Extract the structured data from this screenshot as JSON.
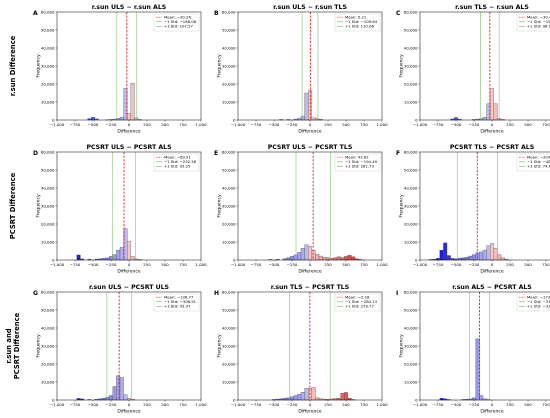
{
  "row_labels": [
    "r.sun Difference",
    "PCSRT Difference",
    "r.sun and",
    "PCSRT Difference"
  ],
  "colors": {
    "mean": "#e11d1d",
    "std": "#7cc46b",
    "positive": "#dc2626",
    "negative": "#1d1dd6",
    "edge": "#555555"
  },
  "chart_data": [
    {
      "type": "bar",
      "panel": "A",
      "title": "r.sun ULS − r.sun ALS",
      "xlabel": "Difference",
      "ylabel": "Frequency",
      "xlim": [
        -1000,
        1000
      ],
      "ylim": [
        0,
        60000
      ],
      "xticks": [
        "−1,000",
        "−750",
        "−500",
        "−250",
        "0",
        "250",
        "500",
        "750",
        "1,000"
      ],
      "yticks": [
        "0",
        "10,000",
        "20,000",
        "30,000",
        "40,000",
        "50,000",
        "60,000"
      ],
      "legend": [
        "Mean:   −30.26",
        "−1 Std:  −168.08",
        "+1 Std:   107.57"
      ],
      "mean": -30.26,
      "std_low": -168.08,
      "std_high": 107.57,
      "bins": [
        [
          -575,
          -525,
          800
        ],
        [
          -525,
          -475,
          1500
        ],
        [
          -475,
          -425,
          700
        ],
        [
          -325,
          -275,
          150
        ],
        [
          -275,
          -225,
          300
        ],
        [
          -225,
          -175,
          500
        ],
        [
          -175,
          -125,
          900
        ],
        [
          -125,
          -75,
          1600
        ],
        [
          -75,
          -25,
          17500
        ],
        [
          -25,
          25,
          3500
        ],
        [
          25,
          75,
          20500
        ],
        [
          75,
          125,
          1200
        ],
        [
          125,
          175,
          300
        ]
      ]
    },
    {
      "type": "bar",
      "panel": "B",
      "title": "r.sun ULS − r.sun TLS",
      "xlabel": "Difference",
      "ylabel": "Frequency",
      "xlim": [
        -1000,
        1000
      ],
      "ylim": [
        0,
        60000
      ],
      "xticks": [
        "−1,000",
        "−750",
        "−500",
        "−250",
        "0",
        "250",
        "500",
        "750",
        "1,000"
      ],
      "yticks": [
        "0",
        "10,000",
        "20,000",
        "30,000",
        "40,000",
        "50,000",
        "60,000"
      ],
      "legend": [
        "Mean:     5.21",
        "−1 Std:  −109.64",
        "+1 Std:   110.06"
      ],
      "mean": 5.21,
      "std_low": -109.64,
      "std_high": 110.06,
      "bins": [
        [
          -425,
          -375,
          300
        ],
        [
          -325,
          -275,
          300
        ],
        [
          -225,
          -175,
          500
        ],
        [
          -175,
          -125,
          900
        ],
        [
          -125,
          -75,
          2200
        ],
        [
          -75,
          -25,
          15000
        ],
        [
          -25,
          25,
          16500
        ],
        [
          25,
          75,
          1200
        ],
        [
          75,
          125,
          800
        ],
        [
          125,
          175,
          400
        ]
      ]
    },
    {
      "type": "bar",
      "panel": "C",
      "title": "r.sun TLS − r.sun ALS",
      "xlabel": "Difference",
      "ylabel": "Frequency",
      "xlim": [
        -1000,
        1000
      ],
      "ylim": [
        0,
        60000
      ],
      "xticks": [
        "−1,000",
        "−750",
        "−500",
        "−250",
        "0",
        "250",
        "500",
        "750",
        "1,000"
      ],
      "yticks": [
        "0",
        "10,000",
        "20,000",
        "30,000",
        "40,000",
        "50,000",
        "60,000"
      ],
      "legend": [
        "Mean:   −30.47",
        "−1 Std:  −159.84",
        "+1 Std:    98.90"
      ],
      "mean": -30.47,
      "std_low": -159.84,
      "std_high": 98.9,
      "bins": [
        [
          -575,
          -525,
          600
        ],
        [
          -525,
          -475,
          1400
        ],
        [
          -475,
          -425,
          500
        ],
        [
          -275,
          -225,
          300
        ],
        [
          -225,
          -175,
          500
        ],
        [
          -175,
          -125,
          800
        ],
        [
          -125,
          -75,
          1600
        ],
        [
          -75,
          -25,
          9000
        ],
        [
          -25,
          25,
          17500
        ],
        [
          25,
          75,
          9000
        ],
        [
          75,
          125,
          900
        ],
        [
          125,
          175,
          300
        ]
      ]
    },
    {
      "type": "bar",
      "panel": "D",
      "title": "PCSRT ULS − PCSRT ALS",
      "xlabel": "Difference",
      "ylabel": "Frequency",
      "xlim": [
        -1000,
        1000
      ],
      "ylim": [
        0,
        60000
      ],
      "xticks": [
        "−1,000",
        "−750",
        "−500",
        "−250",
        "0",
        "250",
        "500",
        "750",
        "1,000"
      ],
      "yticks": [
        "0",
        "10,000",
        "20,000",
        "30,000",
        "40,000",
        "50,000",
        "60,000"
      ],
      "legend": [
        "Mean:   −69.51",
        "−1 Std:  −232.26",
        "+1 Std:    93.25"
      ],
      "mean": -69.51,
      "std_low": -232.26,
      "std_high": 93.25,
      "bins": [
        [
          -725,
          -675,
          2800
        ],
        [
          -675,
          -625,
          600
        ],
        [
          -575,
          -525,
          400
        ],
        [
          -475,
          -425,
          500
        ],
        [
          -425,
          -375,
          700
        ],
        [
          -375,
          -325,
          900
        ],
        [
          -325,
          -275,
          1200
        ],
        [
          -275,
          -225,
          2000
        ],
        [
          -225,
          -175,
          3000
        ],
        [
          -175,
          -125,
          5500
        ],
        [
          -125,
          -75,
          7000
        ],
        [
          -75,
          -25,
          17500
        ],
        [
          -25,
          25,
          10500
        ],
        [
          25,
          75,
          2000
        ],
        [
          75,
          125,
          600
        ],
        [
          125,
          175,
          300
        ]
      ]
    },
    {
      "type": "bar",
      "panel": "E",
      "title": "PCSRT ULS − PCSRT TLS",
      "xlabel": "Difference",
      "ylabel": "Frequency",
      "xlim": [
        -1000,
        1000
      ],
      "ylim": [
        0,
        60000
      ],
      "xticks": [
        "−1,000",
        "−750",
        "−500",
        "−250",
        "0",
        "250",
        "500",
        "750",
        "1,000"
      ],
      "yticks": [
        "0",
        "10,000",
        "20,000",
        "30,000",
        "40,000",
        "50,000",
        "60,000"
      ],
      "legend": [
        "Mean:    43.62",
        "−1 Std:  −194.49",
        "+1 Std:   281.73"
      ],
      "mean": 43.62,
      "std_low": -194.49,
      "std_high": 281.73,
      "bins": [
        [
          -575,
          -525,
          300
        ],
        [
          -475,
          -425,
          400
        ],
        [
          -375,
          -325,
          700
        ],
        [
          -325,
          -275,
          1200
        ],
        [
          -275,
          -225,
          2000
        ],
        [
          -225,
          -175,
          2800
        ],
        [
          -175,
          -125,
          4200
        ],
        [
          -125,
          -75,
          6500
        ],
        [
          -75,
          -25,
          8500
        ],
        [
          -25,
          25,
          7500
        ],
        [
          25,
          75,
          5500
        ],
        [
          75,
          125,
          3200
        ],
        [
          125,
          175,
          2200
        ],
        [
          175,
          225,
          1600
        ],
        [
          225,
          275,
          1200
        ],
        [
          275,
          325,
          1000
        ],
        [
          325,
          375,
          1300
        ],
        [
          375,
          425,
          1800
        ],
        [
          425,
          475,
          1300
        ],
        [
          475,
          525,
          2000
        ],
        [
          525,
          575,
          2600
        ],
        [
          575,
          625,
          1800
        ],
        [
          625,
          675,
          700
        ],
        [
          675,
          725,
          300
        ]
      ]
    },
    {
      "type": "bar",
      "panel": "F",
      "title": "PCSRT TLS − PCSRT ALS",
      "xlabel": "Difference",
      "ylabel": "Frequency",
      "xlim": [
        -1000,
        1000
      ],
      "ylim": [
        0,
        60000
      ],
      "xticks": [
        "−1,000",
        "−750",
        "−500",
        "−250",
        "0",
        "250",
        "500",
        "750",
        "1,000"
      ],
      "yticks": [
        "0",
        "10,000",
        "20,000",
        "30,000",
        "40,000",
        "50,000",
        "60,000"
      ],
      "legend": [
        "Mean:  −204.05",
        "−1 Std:  −482.93",
        "+1 Std:    74.84"
      ],
      "mean": -204.05,
      "std_low": -482.93,
      "std_high": 74.84,
      "bins": [
        [
          -875,
          -825,
          300
        ],
        [
          -825,
          -775,
          500
        ],
        [
          -775,
          -725,
          900
        ],
        [
          -725,
          -675,
          5500
        ],
        [
          -675,
          -625,
          9500
        ],
        [
          -625,
          -575,
          2500
        ],
        [
          -575,
          -525,
          900
        ],
        [
          -525,
          -475,
          700
        ],
        [
          -475,
          -425,
          900
        ],
        [
          -425,
          -375,
          1200
        ],
        [
          -375,
          -325,
          1600
        ],
        [
          -325,
          -275,
          2200
        ],
        [
          -275,
          -225,
          3000
        ],
        [
          -225,
          -175,
          4000
        ],
        [
          -175,
          -125,
          4500
        ],
        [
          -125,
          -75,
          5500
        ],
        [
          -75,
          -25,
          8000
        ],
        [
          -25,
          25,
          9200
        ],
        [
          25,
          75,
          6500
        ],
        [
          75,
          125,
          3000
        ],
        [
          125,
          175,
          1200
        ],
        [
          175,
          225,
          500
        ]
      ]
    },
    {
      "type": "bar",
      "panel": "G",
      "title": "r.sun ULS − PCSRT ULS",
      "xlabel": "Difference",
      "ylabel": "Frequency",
      "xlim": [
        -1000,
        1000
      ],
      "ylim": [
        0,
        60000
      ],
      "xticks": [
        "−1,000",
        "−750",
        "−500",
        "−250",
        "0",
        "250",
        "500",
        "750",
        "1,000"
      ],
      "yticks": [
        "0",
        "10,000",
        "20,000",
        "30,000",
        "40,000",
        "50,000",
        "60,000"
      ],
      "legend": [
        "Mean:  −136.77",
        "−1 Std:  −306.91",
        "+1 Std:    33.37"
      ],
      "mean": -136.77,
      "std_low": -306.91,
      "std_high": 33.37,
      "bins": [
        [
          -725,
          -675,
          900
        ],
        [
          -675,
          -625,
          600
        ],
        [
          -575,
          -525,
          300
        ],
        [
          -475,
          -425,
          400
        ],
        [
          -425,
          -375,
          700
        ],
        [
          -375,
          -325,
          1000
        ],
        [
          -325,
          -275,
          1600
        ],
        [
          -275,
          -225,
          2500
        ],
        [
          -225,
          -175,
          7500
        ],
        [
          -175,
          -125,
          13500
        ],
        [
          -125,
          -75,
          12500
        ],
        [
          -75,
          -25,
          3000
        ],
        [
          -25,
          25,
          1000
        ],
        [
          25,
          75,
          400
        ]
      ]
    },
    {
      "type": "bar",
      "panel": "H",
      "title": "r.sun TLS − PCSRT TLS",
      "xlabel": "Difference",
      "ylabel": "Frequency",
      "xlim": [
        -1000,
        1000
      ],
      "ylim": [
        0,
        60000
      ],
      "xticks": [
        "−1,000",
        "−750",
        "−500",
        "−250",
        "0",
        "250",
        "500",
        "750",
        "1,000"
      ],
      "yticks": [
        "0",
        "10,000",
        "20,000",
        "30,000",
        "40,000",
        "50,000",
        "60,000"
      ],
      "legend": [
        "Mean:    −2.18",
        "−1 Std:  −284.13",
        "+1 Std:   279.77"
      ],
      "mean": -2.18,
      "std_low": -284.13,
      "std_high": 279.77,
      "bins": [
        [
          -525,
          -475,
          300
        ],
        [
          -475,
          -425,
          500
        ],
        [
          -425,
          -375,
          700
        ],
        [
          -375,
          -325,
          900
        ],
        [
          -325,
          -275,
          1300
        ],
        [
          -275,
          -225,
          1800
        ],
        [
          -225,
          -175,
          2500
        ],
        [
          -175,
          -125,
          3200
        ],
        [
          -125,
          -75,
          4300
        ],
        [
          -75,
          -25,
          6500
        ],
        [
          -25,
          25,
          6500
        ],
        [
          25,
          75,
          7000
        ],
        [
          75,
          125,
          1200
        ],
        [
          125,
          175,
          700
        ],
        [
          175,
          225,
          500
        ],
        [
          225,
          275,
          400
        ],
        [
          275,
          325,
          600
        ],
        [
          325,
          375,
          800
        ],
        [
          375,
          425,
          1000
        ],
        [
          425,
          475,
          3800
        ],
        [
          475,
          525,
          4200
        ],
        [
          525,
          575,
          1000
        ],
        [
          575,
          625,
          300
        ]
      ]
    },
    {
      "type": "bar",
      "panel": "I",
      "title": "r.sun ALS − PCSRT ALS",
      "xlabel": "Difference",
      "ylabel": "Frequency",
      "xlim": [
        -1000,
        1000
      ],
      "ylim": [
        0,
        60000
      ],
      "xticks": [
        "−1,000",
        "−750",
        "−500",
        "−250",
        "0",
        "250",
        "500",
        "750",
        "1,000"
      ],
      "yticks": [
        "0",
        "10,000",
        "20,000",
        "30,000",
        "40,000",
        "50,000",
        "60,000"
      ],
      "legend": [
        "Mean:  −173.14",
        "−1 Std:  −314.04",
        "+1 Std:   −32.24"
      ],
      "mean": -173.14,
      "std_low": -314.04,
      "std_high": -32.24,
      "bins": [
        [
          -725,
          -675,
          1000
        ],
        [
          -675,
          -625,
          700
        ],
        [
          -625,
          -575,
          300
        ],
        [
          -425,
          -375,
          300
        ],
        [
          -375,
          -325,
          400
        ],
        [
          -325,
          -275,
          600
        ],
        [
          -275,
          -225,
          1200
        ],
        [
          -225,
          -175,
          34000
        ],
        [
          -175,
          -125,
          2500
        ],
        [
          -125,
          -75,
          700
        ],
        [
          -75,
          -25,
          300
        ]
      ]
    }
  ]
}
